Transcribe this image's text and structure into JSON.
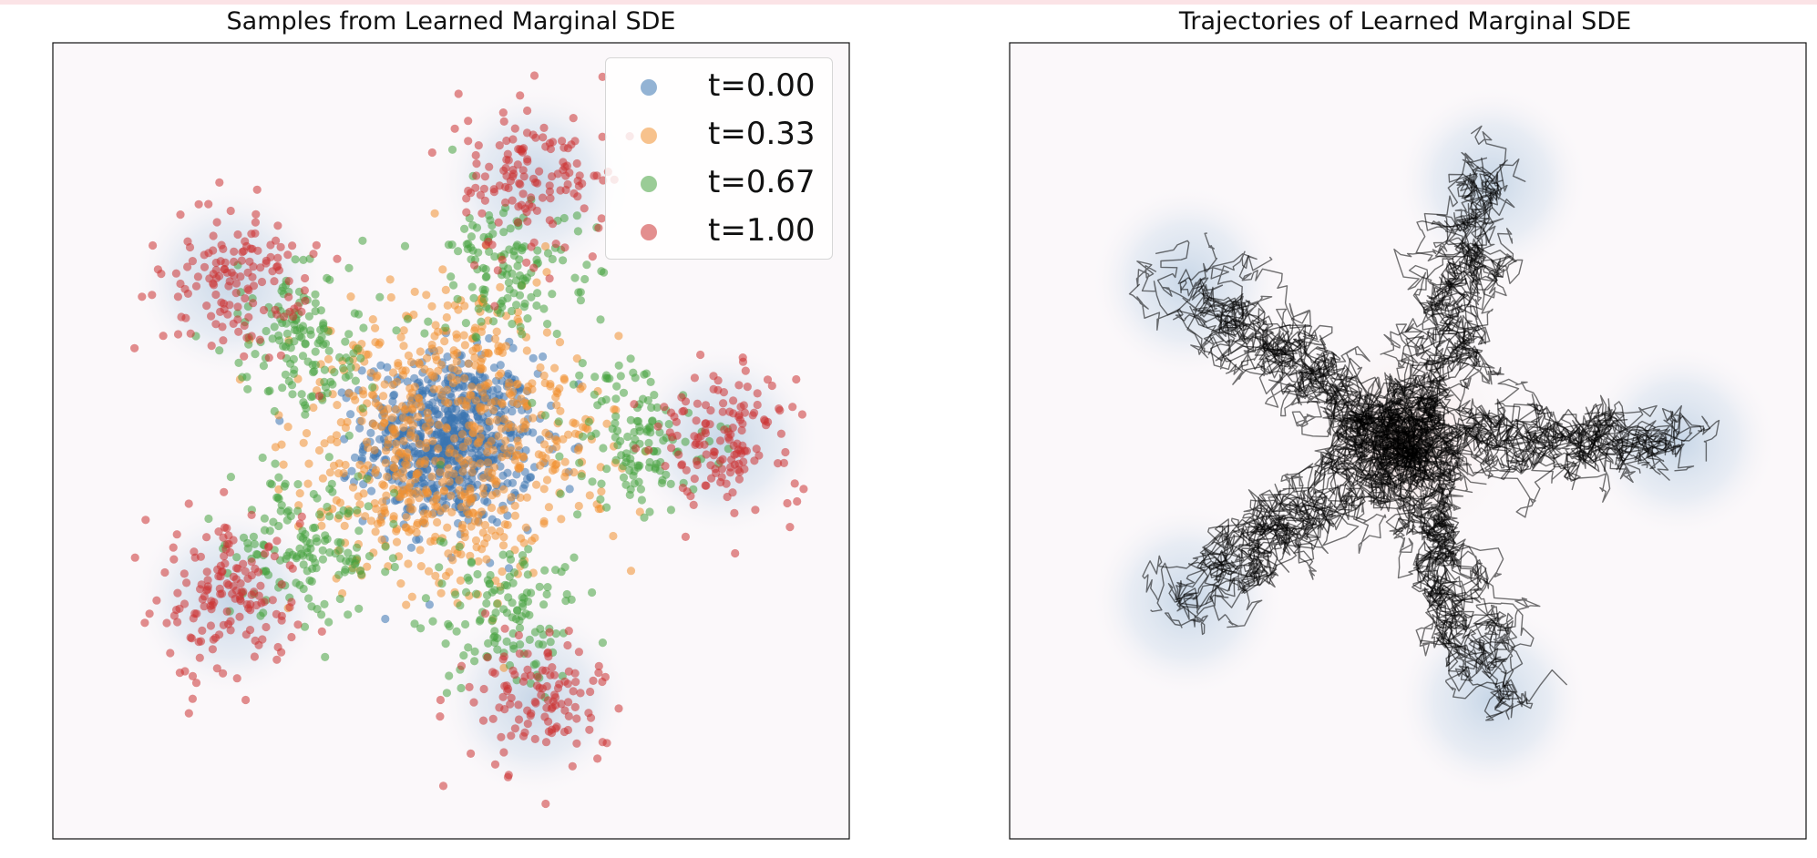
{
  "chart_data": [
    {
      "type": "scatter",
      "title": "Samples from Learned Marginal SDE",
      "xlabel": "",
      "ylabel": "",
      "xlim": [
        -3,
        3
      ],
      "ylim": [
        -3,
        3
      ],
      "ticks": "none",
      "background": "density heatmap with blue blobs around 5 target modes",
      "legend": {
        "position": "top-right",
        "entries": [
          "t=0.00",
          "t=0.33",
          "t=0.67",
          "t=1.00"
        ]
      },
      "target_modes": [
        {
          "x": 2.05,
          "y": 0.0
        },
        {
          "x": 0.63,
          "y": 1.95
        },
        {
          "x": -1.66,
          "y": 1.2
        },
        {
          "x": -1.66,
          "y": -1.2
        },
        {
          "x": 0.63,
          "y": -1.95
        }
      ],
      "series": [
        {
          "name": "t=0.00",
          "color": "#3a75b0",
          "center_radius": 0.0,
          "spread": 0.32,
          "count": 700
        },
        {
          "name": "t=0.33",
          "color": "#f0902f",
          "center_radius": 0.65,
          "spread": 0.34,
          "count": 700
        },
        {
          "name": "t=0.67",
          "color": "#47a23f",
          "center_radius": 1.35,
          "spread": 0.28,
          "count": 700
        },
        {
          "name": "t=1.00",
          "color": "#cc3333",
          "center_radius": 2.05,
          "spread": 0.28,
          "count": 700
        }
      ]
    },
    {
      "type": "line",
      "title": "Trajectories of Learned Marginal SDE",
      "xlabel": "",
      "ylabel": "",
      "xlim": [
        -3,
        3
      ],
      "ylim": [
        -3,
        3
      ],
      "ticks": "none",
      "line_color": "#000000",
      "trajectory_count": 60,
      "description_of_paths": "random-walk trajectories from the center out to the 5 modes",
      "target_modes": [
        {
          "x": 2.05,
          "y": 0.0
        },
        {
          "x": 0.63,
          "y": 1.95
        },
        {
          "x": -1.66,
          "y": 1.2
        },
        {
          "x": -1.66,
          "y": -1.2
        },
        {
          "x": 0.63,
          "y": -1.95
        }
      ]
    }
  ],
  "colors": {
    "t0": "#3a75b0",
    "t033": "#f0902f",
    "t067": "#47a23f",
    "t1": "#cc3333",
    "topbar": "#fbe3e6"
  }
}
